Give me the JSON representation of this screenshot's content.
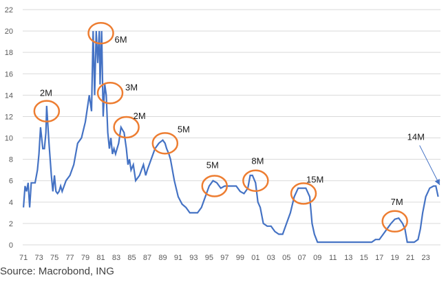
{
  "source": "Source: Macrobond, ING",
  "colors": {
    "line": "#4472C4",
    "circle": "#ED7D31",
    "grid": "#d9d9d9",
    "arrow": "#4472C4"
  },
  "chart_data": {
    "type": "line",
    "title": "",
    "xlabel": "",
    "ylabel": "",
    "ylim": [
      0,
      22
    ],
    "xlim": [
      1970.9,
      2024.9
    ],
    "yticks": [
      0,
      2,
      4,
      6,
      8,
      10,
      12,
      14,
      16,
      18,
      20,
      22
    ],
    "xtick_labels": [
      "71",
      "73",
      "75",
      "77",
      "79",
      "81",
      "83",
      "85",
      "87",
      "89",
      "91",
      "93",
      "95",
      "97",
      "99",
      "01",
      "03",
      "05",
      "07",
      "09",
      "11",
      "13",
      "15",
      "17",
      "19",
      "21",
      "23"
    ],
    "grid": "horizontal",
    "series": [
      {
        "x": [
          1971.0,
          1971.2,
          1971.4,
          1971.6,
          1971.8,
          1972.0,
          1972.2,
          1972.5,
          1972.8,
          1973.0,
          1973.2,
          1973.5,
          1973.7,
          1973.9,
          1974.0,
          1974.3,
          1974.6,
          1974.8,
          1975.0,
          1975.2,
          1975.4,
          1975.6,
          1975.8,
          1976.0,
          1976.5,
          1977.0,
          1977.5,
          1978.0,
          1978.5,
          1979.0,
          1979.5,
          1979.8,
          1980.0,
          1980.2,
          1980.4,
          1980.6,
          1980.8,
          1980.9,
          1981.1,
          1981.3,
          1981.5,
          1981.7,
          1981.9,
          1982.1,
          1982.3,
          1982.5,
          1982.7,
          1982.9,
          1983.1,
          1983.3,
          1983.6,
          1984.0,
          1984.3,
          1984.5,
          1984.7,
          1984.9,
          1985.2,
          1985.5,
          1986.0,
          1986.5,
          1986.8,
          1987.0,
          1987.5,
          1988.0,
          1988.5,
          1989.0,
          1989.3,
          1989.5,
          1989.8,
          1990.0,
          1990.5,
          1991.0,
          1991.5,
          1992.0,
          1992.5,
          1993.0,
          1993.5,
          1994.0,
          1994.5,
          1995.0,
          1995.5,
          1996.0,
          1996.5,
          1997.0,
          1997.5,
          1998.0,
          1998.5,
          1999.0,
          1999.5,
          2000.0,
          2000.3,
          2000.6,
          2001.0,
          2001.3,
          2001.6,
          2002.0,
          2002.5,
          2003.0,
          2003.5,
          2004.0,
          2004.5,
          2005.0,
          2005.5,
          2006.0,
          2006.5,
          2007.0,
          2007.5,
          2008.0,
          2008.3,
          2008.6,
          2009.0,
          2010.0,
          2011.0,
          2012.0,
          2013.0,
          2014.0,
          2015.0,
          2016.0,
          2016.5,
          2017.0,
          2017.5,
          2018.0,
          2018.5,
          2019.0,
          2019.5,
          2020.0,
          2020.3,
          2020.6,
          2021.0,
          2021.5,
          2022.0,
          2022.3,
          2022.6,
          2023.0,
          2023.5,
          2024.0,
          2024.3,
          2024.6
        ],
        "y": [
          3.5,
          5.5,
          5.0,
          5.8,
          3.5,
          5.8,
          5.8,
          5.8,
          7.0,
          8.5,
          11.0,
          9.0,
          9.0,
          10.5,
          13.0,
          9.5,
          6.5,
          5.0,
          6.5,
          5.0,
          4.8,
          5.0,
          5.5,
          5.0,
          6.0,
          6.5,
          7.5,
          9.5,
          10.0,
          11.5,
          14.0,
          12.5,
          20.0,
          14.0,
          20.0,
          17.0,
          20.0,
          15.0,
          20.0,
          12.0,
          15.0,
          14.0,
          10.5,
          9.0,
          10.0,
          8.5,
          9.0,
          8.5,
          9.0,
          9.5,
          11.0,
          10.5,
          9.0,
          7.5,
          8.0,
          7.0,
          7.5,
          6.0,
          6.5,
          7.5,
          6.5,
          7.0,
          8.0,
          9.0,
          9.5,
          9.8,
          9.5,
          9.0,
          8.5,
          8.0,
          6.0,
          4.5,
          3.8,
          3.5,
          3.0,
          3.0,
          3.0,
          3.5,
          4.5,
          5.5,
          6.0,
          5.8,
          5.3,
          5.5,
          5.5,
          5.5,
          5.5,
          5.0,
          4.8,
          5.3,
          6.5,
          6.5,
          5.8,
          4.0,
          3.5,
          2.0,
          1.75,
          1.75,
          1.25,
          1.0,
          1.0,
          2.0,
          3.0,
          4.5,
          5.3,
          5.3,
          5.3,
          4.5,
          2.0,
          1.0,
          0.25,
          0.25,
          0.25,
          0.25,
          0.25,
          0.25,
          0.25,
          0.25,
          0.5,
          0.5,
          1.0,
          1.5,
          2.0,
          2.4,
          2.5,
          2.0,
          1.5,
          0.25,
          0.25,
          0.25,
          0.5,
          1.5,
          3.0,
          4.5,
          5.3,
          5.5,
          5.5,
          4.5
        ]
      }
    ],
    "annotations": [
      {
        "label": "2M",
        "cx": 1974.0,
        "cy": 12.5
      },
      {
        "label": "6M",
        "cx": 1981.0,
        "cy": 19.8
      },
      {
        "label": "3M",
        "cx": 1982.2,
        "cy": 14.2
      },
      {
        "label": "2M",
        "cx": 1984.3,
        "cy": 11.0
      },
      {
        "label": "5M",
        "cx": 1989.3,
        "cy": 9.5
      },
      {
        "label": "5M",
        "cx": 1995.7,
        "cy": 5.5
      },
      {
        "label": "8M",
        "cx": 2001.0,
        "cy": 6.0
      },
      {
        "label": "15M",
        "cx": 2007.2,
        "cy": 4.8
      },
      {
        "label": "7M",
        "cx": 2019.0,
        "cy": 2.2
      }
    ],
    "arrow_annotation": {
      "label": "14M",
      "from": [
        2022.2,
        9.3
      ],
      "to": [
        2024.8,
        5.6
      ]
    }
  }
}
